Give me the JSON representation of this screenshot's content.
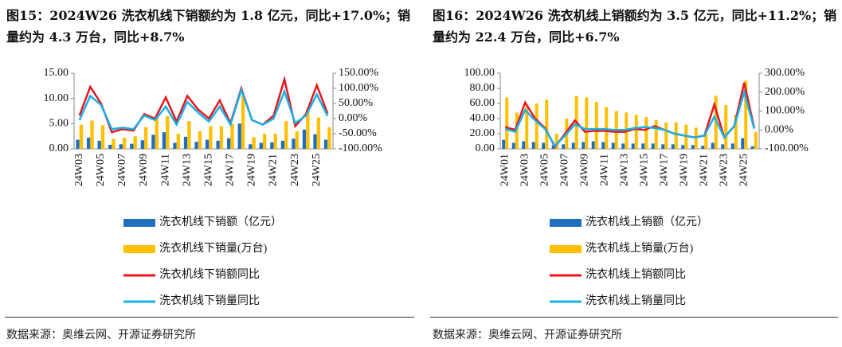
{
  "chart_data": [
    {
      "type": "combo",
      "title": "图15：2024W26 洗衣机线下销额约为 1.8 亿元，同比+17.0%；销量约为 4.3 万台，同比+8.7%",
      "source": "数据来源：奥维云网、开源证券研究所",
      "categories": [
        "24W03",
        null,
        "24W05",
        null,
        "24W07",
        null,
        "24W09",
        null,
        "24W11",
        null,
        "24W13",
        null,
        "24W15",
        null,
        "24W17",
        null,
        "24W19",
        null,
        "24W21",
        null,
        "24W23",
        null,
        "24W25",
        null
      ],
      "ylim": [
        0,
        15
      ],
      "yticks": [
        {
          "value": 0,
          "label": "0.00"
        },
        {
          "value": 5,
          "label": "5.00"
        },
        {
          "value": 10,
          "label": "10.00"
        },
        {
          "value": 15,
          "label": "15.00"
        }
      ],
      "y2lim": [
        -100,
        150
      ],
      "y2ticks": [
        {
          "value": -100,
          "label": "-100.00%"
        },
        {
          "value": -50,
          "label": "-50.00%"
        },
        {
          "value": 0,
          "label": "0.00%"
        },
        {
          "value": 50,
          "label": "50.00%"
        },
        {
          "value": 100,
          "label": "100.00%"
        },
        {
          "value": 150,
          "label": "150.00%"
        }
      ],
      "series": [
        {
          "name": "洗衣机线下销额（亿元）",
          "type": "bar",
          "color": "#1f6fc1",
          "values": [
            1.8,
            2.2,
            1.6,
            0.8,
            0.9,
            1.0,
            1.7,
            2.8,
            3.3,
            1.2,
            2.4,
            1.4,
            1.8,
            1.6,
            2.1,
            5.0,
            0.9,
            1.2,
            1.3,
            1.6,
            2.0,
            3.8,
            2.9,
            1.8
          ]
        },
        {
          "name": "洗衣机线下销量(万台)",
          "type": "bar",
          "color": "#ffc000",
          "values": [
            4.8,
            5.6,
            4.7,
            2.0,
            2.2,
            2.5,
            4.3,
            6.0,
            6.5,
            3.0,
            5.5,
            3.5,
            4.5,
            4.5,
            5.0,
            10.5,
            2.3,
            3.0,
            3.0,
            5.5,
            3.5,
            8.0,
            6.2,
            4.3
          ]
        },
        {
          "name": "洗衣机线下销额同比",
          "type": "line",
          "axis": "y2",
          "color": "#e8161b",
          "values": [
            10,
            105,
            50,
            -45,
            -35,
            -40,
            15,
            0,
            70,
            -10,
            75,
            30,
            0,
            60,
            -15,
            100,
            -5,
            -20,
            10,
            130,
            -25,
            15,
            110,
            17
          ]
        },
        {
          "name": "洗衣机线下销量同比",
          "type": "line",
          "axis": "y2",
          "color": "#17b2ea",
          "values": [
            -5,
            75,
            45,
            -35,
            -30,
            -35,
            10,
            -5,
            40,
            -20,
            55,
            20,
            -10,
            40,
            -20,
            95,
            -5,
            -20,
            0,
            90,
            -15,
            10,
            80,
            8.7
          ]
        }
      ]
    },
    {
      "type": "combo",
      "title": "图16：2024W26 洗衣机线上销额约为 3.5 亿元，同比+11.2%；销量约为 22.4 万台，同比+6.7%",
      "source": "数据来源：奥维云网、开源证券研究所",
      "categories": [
        "24W01",
        null,
        "24W03",
        null,
        "24W05",
        null,
        "24W07",
        null,
        "24W09",
        null,
        "24W11",
        null,
        "24W13",
        null,
        "24W15",
        null,
        "24W17",
        null,
        "24W19",
        null,
        "24W21",
        null,
        "24W23",
        null,
        "24W25",
        null
      ],
      "ylim": [
        0,
        100
      ],
      "yticks": [
        {
          "value": 0,
          "label": "0.00"
        },
        {
          "value": 20,
          "label": "20.00"
        },
        {
          "value": 40,
          "label": "40.00"
        },
        {
          "value": 60,
          "label": "60.00"
        },
        {
          "value": 80,
          "label": "80.00"
        },
        {
          "value": 100,
          "label": "100.00"
        }
      ],
      "y2lim": [
        -100,
        300
      ],
      "y2ticks": [
        {
          "value": -100,
          "label": "-100.00%"
        },
        {
          "value": 0,
          "label": "0.00%"
        },
        {
          "value": 100,
          "label": "100.00%"
        },
        {
          "value": 200,
          "label": "200.00%"
        },
        {
          "value": 300,
          "label": "300.00%"
        }
      ],
      "series": [
        {
          "name": "洗衣机线上销额（亿元）",
          "type": "bar",
          "color": "#1f6fc1",
          "values": [
            12,
            8,
            10,
            9,
            8,
            5,
            6,
            8,
            9,
            10,
            9,
            8,
            7,
            7,
            7,
            7,
            6,
            6,
            5,
            5,
            4,
            8,
            6,
            7,
            14,
            3.5
          ]
        },
        {
          "name": "洗衣机线上销量(万台)",
          "type": "bar",
          "color": "#ffc000",
          "values": [
            68,
            48,
            55,
            60,
            65,
            20,
            40,
            70,
            68,
            62,
            55,
            50,
            48,
            45,
            42,
            38,
            35,
            35,
            32,
            28,
            20,
            70,
            58,
            45,
            90,
            22.4
          ]
        },
        {
          "name": "洗衣机线上销额同比",
          "type": "line",
          "axis": "y2",
          "color": "#e8161b",
          "values": [
            15,
            0,
            145,
            60,
            10,
            -90,
            -20,
            50,
            -10,
            -5,
            -5,
            -10,
            -10,
            5,
            0,
            20,
            0,
            -20,
            -30,
            -40,
            -30,
            135,
            -40,
            20,
            250,
            11.2
          ]
        },
        {
          "name": "洗衣机线上销量同比",
          "type": "line",
          "axis": "y2",
          "color": "#17b2ea",
          "values": [
            5,
            -10,
            105,
            50,
            5,
            -85,
            -30,
            30,
            5,
            5,
            5,
            0,
            0,
            10,
            15,
            10,
            0,
            -20,
            -30,
            -40,
            -30,
            70,
            -40,
            20,
            200,
            6.7
          ]
        }
      ]
    }
  ]
}
